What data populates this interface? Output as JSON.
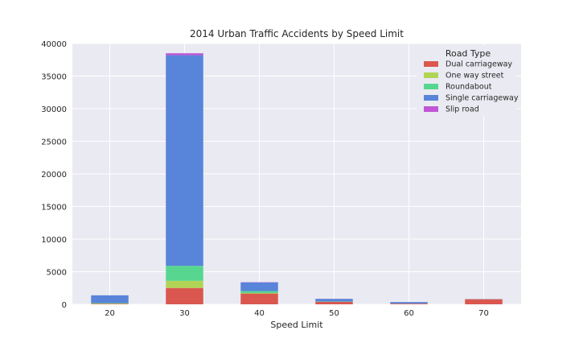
{
  "chart_data": {
    "type": "bar",
    "stacked": true,
    "title": "2014 Urban Traffic Accidents by Speed Limit",
    "xlabel": "Speed Limit",
    "ylabel": "",
    "categories": [
      "20",
      "30",
      "40",
      "50",
      "60",
      "70"
    ],
    "ylim": [
      0,
      40000
    ],
    "yticks": [
      0,
      5000,
      10000,
      15000,
      20000,
      25000,
      30000,
      35000,
      40000
    ],
    "grid": true,
    "legend": {
      "title": "Road Type",
      "placement": "top-right"
    },
    "series": [
      {
        "name": "Dual carriageway",
        "color": "#d9574f",
        "values": [
          60,
          2500,
          1650,
          370,
          100,
          780
        ]
      },
      {
        "name": "One way street",
        "color": "#b2d456",
        "values": [
          80,
          1100,
          80,
          20,
          5,
          0
        ]
      },
      {
        "name": "Roundabout",
        "color": "#57d690",
        "values": [
          40,
          2300,
          300,
          40,
          10,
          5
        ]
      },
      {
        "name": "Single carriageway",
        "color": "#5884d9",
        "values": [
          1200,
          32300,
          1330,
          400,
          230,
          20
        ]
      },
      {
        "name": "Slip road",
        "color": "#c056d6",
        "values": [
          0,
          300,
          40,
          20,
          5,
          5
        ]
      }
    ]
  }
}
